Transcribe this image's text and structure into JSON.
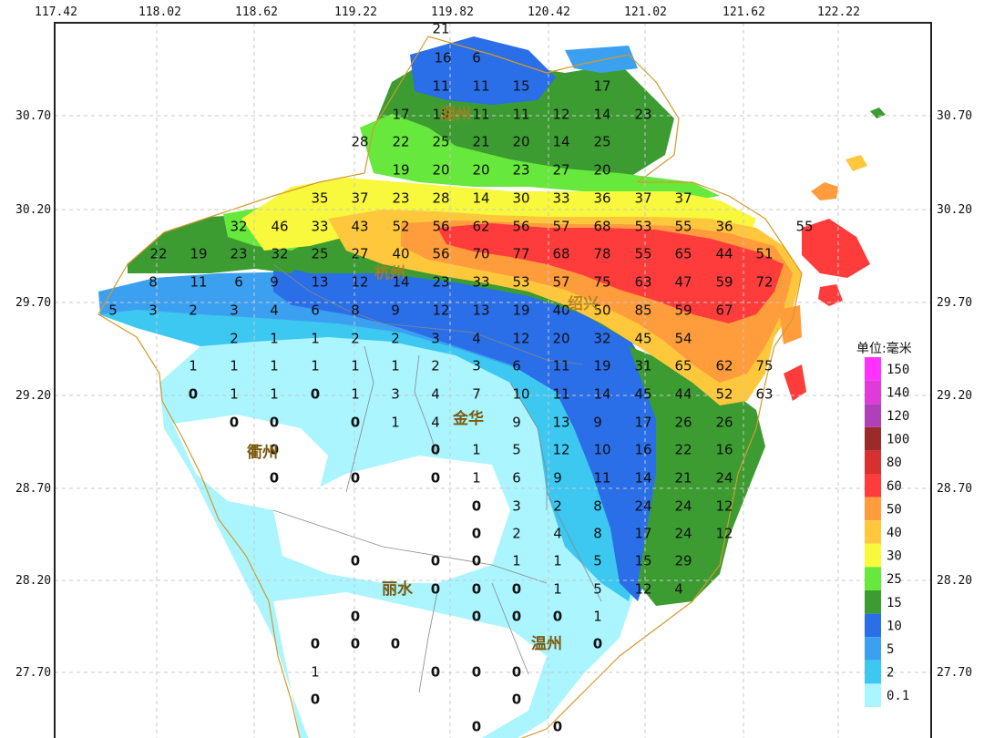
{
  "map": {
    "lon_ticks_top": [
      "117.42",
      "118.02",
      "118.62",
      "119.22",
      "119.82",
      "120.42",
      "121.02",
      "121.62",
      "122.22"
    ],
    "lat_ticks_left": [
      "30.70",
      "30.20",
      "29.70",
      "29.20",
      "28.70",
      "28.20",
      "27.70"
    ],
    "lat_ticks_right": [
      "30.70",
      "30.20",
      "29.70",
      "29.20",
      "28.70",
      "28.20",
      "27.70"
    ],
    "cities": [
      "杭州",
      "绍兴",
      "金华",
      "衢州",
      "丽水",
      "温州",
      "湖州"
    ]
  },
  "legend": {
    "title": "单位:毫米",
    "items": [
      {
        "label": "150",
        "color": "#ff33ff"
      },
      {
        "label": "140",
        "color": "#e03ad8"
      },
      {
        "label": "120",
        "color": "#b040b8"
      },
      {
        "label": "100",
        "color": "#9c2a2a"
      },
      {
        "label": "80",
        "color": "#d63030"
      },
      {
        "label": "60",
        "color": "#ff3c3c"
      },
      {
        "label": "50",
        "color": "#ff9c3c"
      },
      {
        "label": "40",
        "color": "#ffc83c"
      },
      {
        "label": "30",
        "color": "#f8f83c"
      },
      {
        "label": "25",
        "color": "#66e83c"
      },
      {
        "label": "15",
        "color": "#3c9c32"
      },
      {
        "label": "10",
        "color": "#2a6ee8"
      },
      {
        "label": "5",
        "color": "#3ca0f0"
      },
      {
        "label": "2",
        "color": "#3cc8f0"
      },
      {
        "label": "0.1",
        "color": "#aaf5ff"
      }
    ]
  },
  "values": [
    {
      "t": "21"
    },
    {
      "t": "16"
    },
    {
      "t": "6"
    },
    {
      "t": "11"
    },
    {
      "t": "11"
    },
    {
      "t": "15"
    },
    {
      "t": "17"
    },
    {
      "t": "17"
    },
    {
      "t": "19"
    },
    {
      "t": "11"
    },
    {
      "t": "11"
    },
    {
      "t": "12"
    },
    {
      "t": "14"
    },
    {
      "t": "23"
    },
    {
      "t": "28"
    },
    {
      "t": "22"
    },
    {
      "t": "25"
    },
    {
      "t": "21"
    },
    {
      "t": "20"
    },
    {
      "t": "14"
    },
    {
      "t": "25"
    },
    {
      "t": "19"
    },
    {
      "t": "20"
    },
    {
      "t": "20"
    },
    {
      "t": "23"
    },
    {
      "t": "27"
    },
    {
      "t": "20"
    },
    {
      "t": "35"
    },
    {
      "t": "37"
    },
    {
      "t": "23"
    },
    {
      "t": "28"
    },
    {
      "t": "14"
    },
    {
      "t": "30"
    },
    {
      "t": "33"
    },
    {
      "t": "36"
    },
    {
      "t": "37"
    },
    {
      "t": "37"
    },
    {
      "t": "32"
    },
    {
      "t": "46"
    },
    {
      "t": "33"
    },
    {
      "t": "43"
    },
    {
      "t": "52"
    },
    {
      "t": "56"
    },
    {
      "t": "62"
    },
    {
      "t": "56"
    },
    {
      "t": "57"
    },
    {
      "t": "68"
    },
    {
      "t": "53"
    },
    {
      "t": "55"
    },
    {
      "t": "36"
    },
    {
      "t": "55"
    },
    {
      "t": "22"
    },
    {
      "t": "19"
    },
    {
      "t": "23"
    },
    {
      "t": "32"
    },
    {
      "t": "25"
    },
    {
      "t": "27"
    },
    {
      "t": "40"
    },
    {
      "t": "56"
    },
    {
      "t": "70"
    },
    {
      "t": "77"
    },
    {
      "t": "68"
    },
    {
      "t": "78"
    },
    {
      "t": "55"
    },
    {
      "t": "65"
    },
    {
      "t": "44"
    },
    {
      "t": "51"
    },
    {
      "t": "8"
    },
    {
      "t": "11"
    },
    {
      "t": "6"
    },
    {
      "t": "9"
    },
    {
      "t": "13"
    },
    {
      "t": "12"
    },
    {
      "t": "14"
    },
    {
      "t": "23"
    },
    {
      "t": "33"
    },
    {
      "t": "53"
    },
    {
      "t": "57"
    },
    {
      "t": "75"
    },
    {
      "t": "63"
    },
    {
      "t": "47"
    },
    {
      "t": "59"
    },
    {
      "t": "72"
    },
    {
      "t": "5"
    },
    {
      "t": "3"
    },
    {
      "t": "2"
    },
    {
      "t": "3"
    },
    {
      "t": "4"
    },
    {
      "t": "6"
    },
    {
      "t": "8"
    },
    {
      "t": "9"
    },
    {
      "t": "12"
    },
    {
      "t": "13"
    },
    {
      "t": "19"
    },
    {
      "t": "40"
    },
    {
      "t": "50"
    },
    {
      "t": "85"
    },
    {
      "t": "59"
    },
    {
      "t": "67"
    },
    {
      "t": "2"
    },
    {
      "t": "1"
    },
    {
      "t": "1"
    },
    {
      "t": "2"
    },
    {
      "t": "2"
    },
    {
      "t": "3"
    },
    {
      "t": "4"
    },
    {
      "t": "12"
    },
    {
      "t": "20"
    },
    {
      "t": "32"
    },
    {
      "t": "45"
    },
    {
      "t": "54"
    },
    {
      "t": "1"
    },
    {
      "t": "1"
    },
    {
      "t": "1"
    },
    {
      "t": "1"
    },
    {
      "t": "1"
    },
    {
      "t": "1"
    },
    {
      "t": "2"
    },
    {
      "t": "3"
    },
    {
      "t": "6"
    },
    {
      "t": "11"
    },
    {
      "t": "19"
    },
    {
      "t": "31"
    },
    {
      "t": "65"
    },
    {
      "t": "62"
    },
    {
      "t": "75"
    },
    {
      "t": "0"
    },
    {
      "t": "1"
    },
    {
      "t": "1"
    },
    {
      "t": "0"
    },
    {
      "t": "1"
    },
    {
      "t": "3"
    },
    {
      "t": "4"
    },
    {
      "t": "7"
    },
    {
      "t": "10"
    },
    {
      "t": "11"
    },
    {
      "t": "14"
    },
    {
      "t": "45"
    },
    {
      "t": "44"
    },
    {
      "t": "52"
    },
    {
      "t": "63"
    },
    {
      "t": "0"
    },
    {
      "t": "0"
    },
    {
      "t": "0"
    },
    {
      "t": "1"
    },
    {
      "t": "4"
    },
    {
      "t": "9"
    },
    {
      "t": "13"
    },
    {
      "t": "9"
    },
    {
      "t": "17"
    },
    {
      "t": "26"
    },
    {
      "t": "26"
    },
    {
      "t": "0"
    },
    {
      "t": "0"
    },
    {
      "t": "1"
    },
    {
      "t": "5"
    },
    {
      "t": "12"
    },
    {
      "t": "10"
    },
    {
      "t": "16"
    },
    {
      "t": "22"
    },
    {
      "t": "16"
    },
    {
      "t": "0"
    },
    {
      "t": "0"
    },
    {
      "t": "0"
    },
    {
      "t": "1"
    },
    {
      "t": "6"
    },
    {
      "t": "9"
    },
    {
      "t": "11"
    },
    {
      "t": "14"
    },
    {
      "t": "21"
    },
    {
      "t": "24"
    },
    {
      "t": "0"
    },
    {
      "t": "3"
    },
    {
      "t": "2"
    },
    {
      "t": "8"
    },
    {
      "t": "24"
    },
    {
      "t": "24"
    },
    {
      "t": "12"
    },
    {
      "t": "0"
    },
    {
      "t": "2"
    },
    {
      "t": "4"
    },
    {
      "t": "8"
    },
    {
      "t": "17"
    },
    {
      "t": "24"
    },
    {
      "t": "12"
    },
    {
      "t": "0"
    },
    {
      "t": "0"
    },
    {
      "t": "0"
    },
    {
      "t": "1"
    },
    {
      "t": "1"
    },
    {
      "t": "5"
    },
    {
      "t": "15"
    },
    {
      "t": "29"
    },
    {
      "t": "0"
    },
    {
      "t": "0"
    },
    {
      "t": "0"
    },
    {
      "t": "1"
    },
    {
      "t": "5"
    },
    {
      "t": "12"
    },
    {
      "t": "4"
    },
    {
      "t": "0"
    },
    {
      "t": "0"
    },
    {
      "t": "0"
    },
    {
      "t": "0"
    },
    {
      "t": "1"
    },
    {
      "t": "0"
    },
    {
      "t": "0"
    },
    {
      "t": "0"
    },
    {
      "t": "0"
    },
    {
      "t": "1"
    },
    {
      "t": "0"
    },
    {
      "t": "0"
    },
    {
      "t": "0"
    },
    {
      "t": "0"
    },
    {
      "t": "0"
    },
    {
      "t": "0"
    },
    {
      "t": "0"
    }
  ]
}
